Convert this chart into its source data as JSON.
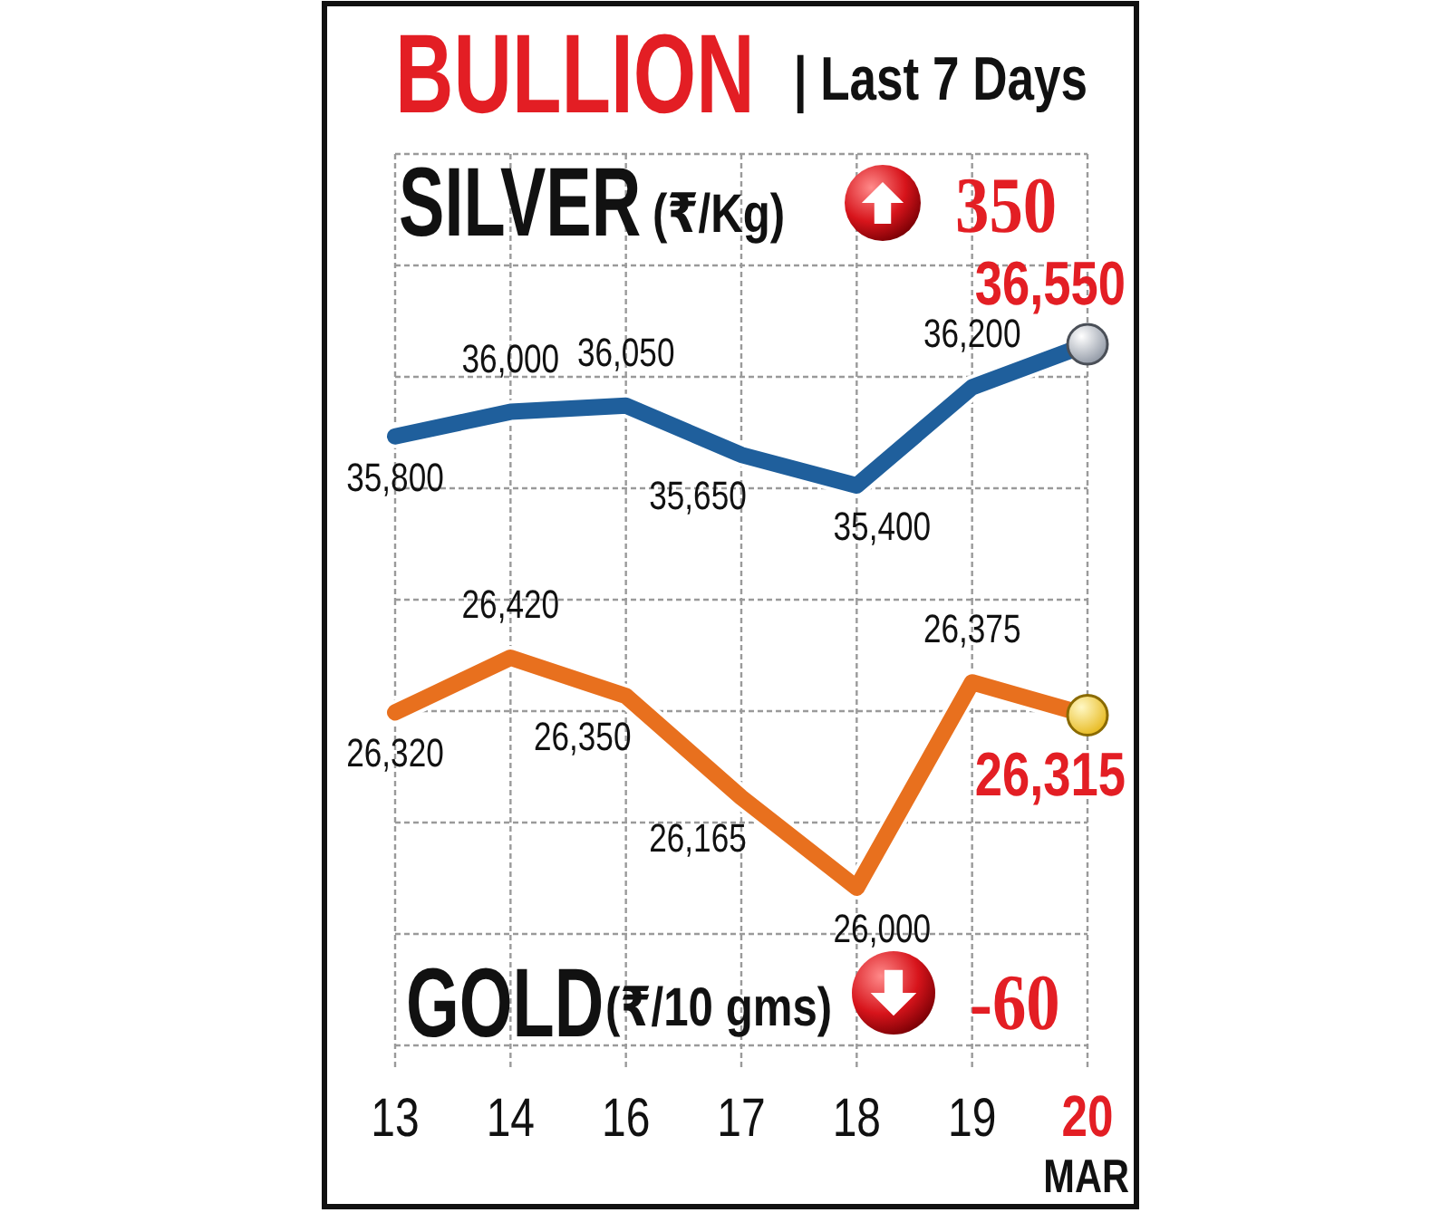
{
  "chart_data": [
    {
      "type": "line",
      "title": "BULLION",
      "subtitle": "| Last 7 Days",
      "categories": [
        "13",
        "14",
        "16",
        "17",
        "18",
        "19",
        "20"
      ],
      "series": [
        {
          "name": "SILVER",
          "color": "#1f5f9c",
          "values": [
            35800,
            36000,
            36050,
            35650,
            35400,
            36200,
            36550
          ],
          "value_labels": [
            "35,800",
            "36,000",
            "36,050",
            "35,650",
            "35,400",
            "36,200",
            "36,550"
          ]
        }
      ],
      "annotations": [
        "(₹/Kg)",
        "350"
      ],
      "tick_labels": false,
      "grid": true,
      "line_style": "solid"
    },
    {
      "type": "line",
      "xlabel": "MAR",
      "categories": [
        "13",
        "14",
        "16",
        "17",
        "18",
        "19",
        "20"
      ],
      "series": [
        {
          "name": "GOLD",
          "color": "#e8701e",
          "values": [
            26320,
            26420,
            26350,
            26165,
            26000,
            26375,
            26315
          ],
          "value_labels": [
            "26,320",
            "26,420",
            "26,350",
            "26,165",
            "26,000",
            "26,375",
            "26,315"
          ]
        }
      ],
      "annotations": [
        "(₹/10 gms)",
        "-60"
      ],
      "grid": true,
      "line_style": "solid"
    }
  ]
}
